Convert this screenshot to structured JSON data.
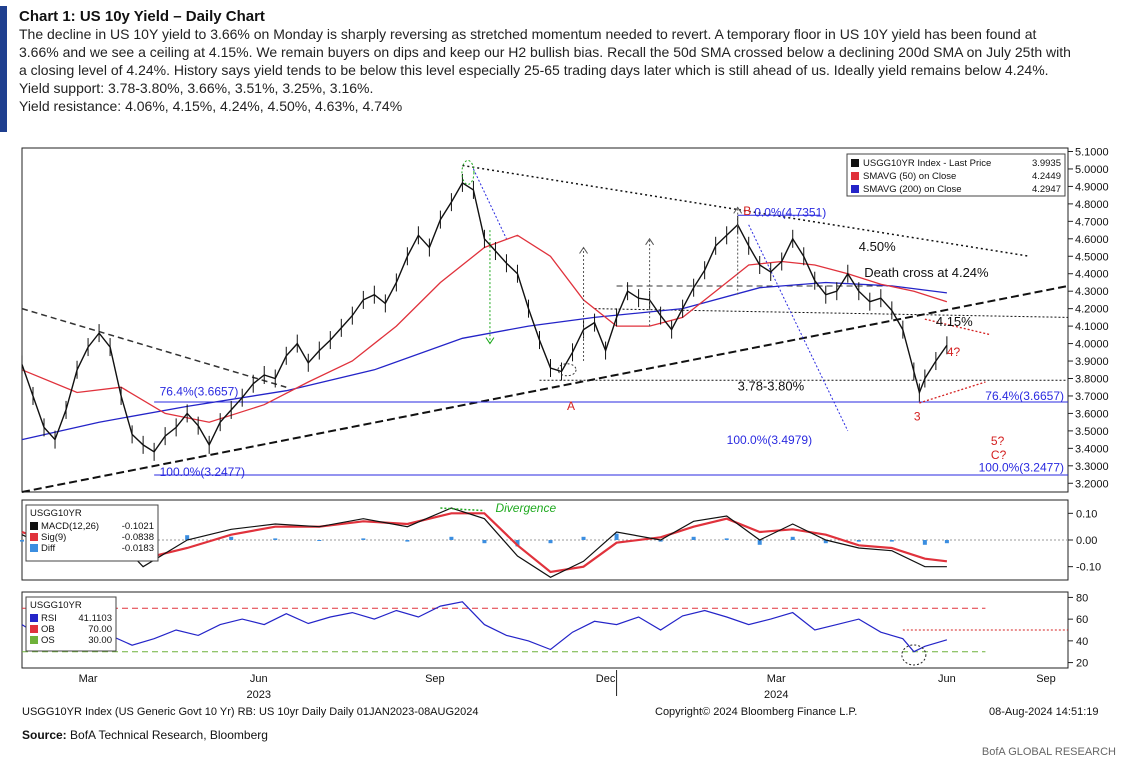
{
  "header": {
    "title": "Chart 1: US 10y Yield – Daily Chart",
    "lines": [
      "The decline in US 10Y yield to 3.66% on Monday is sharply reversing as stretched momentum needed to revert. A temporary floor in US 10Y yield has been found at",
      "3.66% and we see a ceiling at 4.15%. We remain buyers on dips and keep our H2 bullish bias. Recall the 50d SMA crossed below a declining 200d SMA on July 25th with",
      "a closing level of 4.24%. History says yield tends to be below this level especially 25-65 trading days later which is still ahead of us. Ideally yield remains below 4.24%.",
      "Yield support: 3.78-3.80%, 3.66%, 3.51%, 3.25%, 3.16%.",
      "Yield resistance: 4.06%, 4.15%, 4.24%, 4.50%, 4.63%, 4.74%"
    ]
  },
  "colors": {
    "price": "#111111",
    "sma50": "#e0323c",
    "sma200": "#2424c8",
    "fib": "#2a2ae0",
    "annot_red": "#d42020",
    "green": "#1faa1f",
    "accent_bar": "#1f3f8f"
  },
  "chart_data": [
    {
      "type": "line",
      "panel": "price",
      "ylim": [
        3.15,
        5.12
      ],
      "yticks": [
        "5.1000",
        "5.0000",
        "4.9000",
        "4.8000",
        "4.7000",
        "4.6000",
        "4.5000",
        "4.4000",
        "4.3000",
        "4.2000",
        "4.1000",
        "4.0000",
        "3.9000",
        "3.8000",
        "3.7000",
        "3.6000",
        "3.5000",
        "3.4000",
        "3.3000",
        "3.2000"
      ],
      "ytick_values": [
        5.1,
        5.0,
        4.9,
        4.8,
        4.7,
        4.6,
        4.5,
        4.4,
        4.3,
        4.2,
        4.1,
        4.0,
        3.9,
        3.8,
        3.7,
        3.6,
        3.5,
        3.4,
        3.3,
        3.2
      ],
      "xlabels": [
        "Mar",
        "Jun",
        "Sep",
        "Dec",
        "Mar",
        "Jun",
        "Sep"
      ],
      "year_labels": [
        "2023",
        "2024"
      ],
      "legend": [
        {
          "label": "USGG10YR Index - Last Price",
          "value": "3.9935",
          "color": "#111111"
        },
        {
          "label": "SMAVG (50)  on Close",
          "value": "4.2449",
          "color": "#e0323c"
        },
        {
          "label": "SMAVG (200)  on Close",
          "value": "4.2947",
          "color": "#2424c8"
        }
      ],
      "price_points": [
        [
          0,
          3.88
        ],
        [
          2,
          3.7
        ],
        [
          4,
          3.52
        ],
        [
          6,
          3.45
        ],
        [
          8,
          3.62
        ],
        [
          10,
          3.85
        ],
        [
          12,
          3.98
        ],
        [
          14,
          4.06
        ],
        [
          16,
          3.98
        ],
        [
          18,
          3.7
        ],
        [
          20,
          3.48
        ],
        [
          22,
          3.42
        ],
        [
          24,
          3.38
        ],
        [
          26,
          3.47
        ],
        [
          28,
          3.52
        ],
        [
          30,
          3.6
        ],
        [
          32,
          3.53
        ],
        [
          34,
          3.42
        ],
        [
          36,
          3.55
        ],
        [
          38,
          3.62
        ],
        [
          40,
          3.69
        ],
        [
          42,
          3.77
        ],
        [
          44,
          3.82
        ],
        [
          46,
          3.8
        ],
        [
          48,
          3.93
        ],
        [
          50,
          4.0
        ],
        [
          52,
          3.89
        ],
        [
          54,
          3.96
        ],
        [
          56,
          4.02
        ],
        [
          58,
          4.09
        ],
        [
          60,
          4.16
        ],
        [
          62,
          4.25
        ],
        [
          64,
          4.28
        ],
        [
          66,
          4.23
        ],
        [
          68,
          4.35
        ],
        [
          70,
          4.5
        ],
        [
          72,
          4.62
        ],
        [
          74,
          4.55
        ],
        [
          76,
          4.71
        ],
        [
          78,
          4.81
        ],
        [
          80,
          4.92
        ],
        [
          82,
          4.88
        ],
        [
          84,
          4.6
        ],
        [
          86,
          4.53
        ],
        [
          88,
          4.46
        ],
        [
          90,
          4.4
        ],
        [
          92,
          4.2
        ],
        [
          94,
          4.02
        ],
        [
          96,
          3.86
        ],
        [
          98,
          3.84
        ],
        [
          100,
          3.95
        ],
        [
          102,
          4.08
        ],
        [
          104,
          4.12
        ],
        [
          106,
          3.96
        ],
        [
          108,
          4.15
        ],
        [
          110,
          4.3
        ],
        [
          112,
          4.26
        ],
        [
          114,
          4.25
        ],
        [
          116,
          4.16
        ],
        [
          118,
          4.08
        ],
        [
          120,
          4.2
        ],
        [
          122,
          4.32
        ],
        [
          124,
          4.42
        ],
        [
          126,
          4.56
        ],
        [
          128,
          4.62
        ],
        [
          130,
          4.68
        ],
        [
          132,
          4.56
        ],
        [
          134,
          4.45
        ],
        [
          136,
          4.41
        ],
        [
          138,
          4.47
        ],
        [
          140,
          4.6
        ],
        [
          142,
          4.5
        ],
        [
          144,
          4.36
        ],
        [
          146,
          4.28
        ],
        [
          148,
          4.3
        ],
        [
          150,
          4.4
        ],
        [
          152,
          4.3
        ],
        [
          154,
          4.24
        ],
        [
          156,
          4.26
        ],
        [
          158,
          4.19
        ],
        [
          160,
          4.08
        ],
        [
          162,
          3.84
        ],
        [
          163,
          3.72
        ],
        [
          164,
          3.8
        ],
        [
          166,
          3.9
        ],
        [
          168,
          3.99
        ]
      ],
      "sma50_points": [
        [
          0,
          3.85
        ],
        [
          10,
          3.72
        ],
        [
          18,
          3.75
        ],
        [
          26,
          3.6
        ],
        [
          34,
          3.55
        ],
        [
          44,
          3.65
        ],
        [
          52,
          3.78
        ],
        [
          60,
          3.9
        ],
        [
          68,
          4.1
        ],
        [
          76,
          4.35
        ],
        [
          84,
          4.55
        ],
        [
          90,
          4.62
        ],
        [
          96,
          4.5
        ],
        [
          102,
          4.25
        ],
        [
          108,
          4.1
        ],
        [
          114,
          4.1
        ],
        [
          120,
          4.15
        ],
        [
          126,
          4.3
        ],
        [
          132,
          4.45
        ],
        [
          138,
          4.47
        ],
        [
          144,
          4.45
        ],
        [
          150,
          4.4
        ],
        [
          156,
          4.34
        ],
        [
          162,
          4.3
        ],
        [
          168,
          4.24
        ]
      ],
      "sma200_points": [
        [
          0,
          3.45
        ],
        [
          14,
          3.55
        ],
        [
          30,
          3.64
        ],
        [
          48,
          3.73
        ],
        [
          64,
          3.85
        ],
        [
          80,
          4.03
        ],
        [
          92,
          4.1
        ],
        [
          104,
          4.15
        ],
        [
          120,
          4.2
        ],
        [
          134,
          4.32
        ],
        [
          146,
          4.35
        ],
        [
          158,
          4.33
        ],
        [
          168,
          4.29
        ]
      ],
      "annotations": {
        "fib_top": "0.0%(4.7351)",
        "fib_7640": "76.4%(3.6657)",
        "fib_100_a": "100.0%(3.4979)",
        "fib_100_b": "100.0%(3.2477)",
        "fib_100_left": "100.0%(3.2477)",
        "fib_764_left": "76.4%(3.6657)",
        "level_450": "4.50%",
        "death_cross": "Death cross at 4.24%",
        "level_415": "4.15%",
        "level_378": "3.78-3.80%",
        "label_B": "B",
        "label_A": "A",
        "label_3": "3",
        "label_4q": "4?",
        "label_5q": "5?",
        "label_cq": "C?"
      }
    },
    {
      "type": "line",
      "panel": "macd",
      "ylim": [
        -0.15,
        0.15
      ],
      "yticks": [
        "0.10",
        "0.00",
        "-0.10"
      ],
      "ytick_values": [
        0.1,
        0.0,
        -0.1
      ],
      "legend_title": "USGG10YR",
      "legend": [
        {
          "label": "MACD(12,26)",
          "value": "-0.1021",
          "color": "#111111"
        },
        {
          "label": "Sig(9)",
          "value": "-0.0838",
          "color": "#e0323c"
        },
        {
          "label": "Diff",
          "value": "-0.0183",
          "color": "#3b8ee0"
        }
      ],
      "annotation": "Divergence",
      "macd_points": [
        [
          0,
          0.02
        ],
        [
          8,
          -0.06
        ],
        [
          16,
          0.03
        ],
        [
          22,
          -0.1
        ],
        [
          30,
          0.0
        ],
        [
          38,
          0.04
        ],
        [
          46,
          0.06
        ],
        [
          54,
          0.05
        ],
        [
          62,
          0.08
        ],
        [
          70,
          0.05
        ],
        [
          78,
          0.12
        ],
        [
          84,
          0.08
        ],
        [
          90,
          -0.06
        ],
        [
          96,
          -0.14
        ],
        [
          102,
          -0.08
        ],
        [
          108,
          0.03
        ],
        [
          116,
          0.0
        ],
        [
          122,
          0.07
        ],
        [
          128,
          0.09
        ],
        [
          134,
          0.0
        ],
        [
          140,
          0.06
        ],
        [
          146,
          0.0
        ],
        [
          152,
          -0.03
        ],
        [
          158,
          -0.04
        ],
        [
          164,
          -0.1
        ],
        [
          168,
          -0.1
        ]
      ],
      "signal_points": [
        [
          0,
          0.03
        ],
        [
          8,
          -0.03
        ],
        [
          16,
          0.01
        ],
        [
          22,
          -0.07
        ],
        [
          30,
          -0.03
        ],
        [
          38,
          0.02
        ],
        [
          46,
          0.05
        ],
        [
          54,
          0.05
        ],
        [
          62,
          0.07
        ],
        [
          70,
          0.06
        ],
        [
          78,
          0.1
        ],
        [
          84,
          0.1
        ],
        [
          90,
          -0.02
        ],
        [
          96,
          -0.12
        ],
        [
          102,
          -0.1
        ],
        [
          108,
          -0.01
        ],
        [
          116,
          0.01
        ],
        [
          122,
          0.05
        ],
        [
          128,
          0.08
        ],
        [
          134,
          0.03
        ],
        [
          140,
          0.04
        ],
        [
          146,
          0.02
        ],
        [
          152,
          -0.02
        ],
        [
          158,
          -0.03
        ],
        [
          164,
          -0.07
        ],
        [
          168,
          -0.08
        ]
      ]
    },
    {
      "type": "line",
      "panel": "rsi",
      "ylim": [
        15,
        85
      ],
      "yticks": [
        "80",
        "60",
        "40",
        "20"
      ],
      "ytick_values": [
        80,
        60,
        40,
        20
      ],
      "legend_title": "USGG10YR",
      "legend": [
        {
          "label": "RSI",
          "value": "41.1103",
          "color": "#2424c8"
        },
        {
          "label": "OB",
          "value": "70.00",
          "color": "#e0323c"
        },
        {
          "label": "OS",
          "value": "30.00",
          "color": "#6fb23a"
        }
      ],
      "overbought": 70,
      "oversold": 30,
      "rsi_points": [
        [
          0,
          55
        ],
        [
          4,
          42
        ],
        [
          8,
          48
        ],
        [
          12,
          62
        ],
        [
          16,
          45
        ],
        [
          20,
          36
        ],
        [
          24,
          42
        ],
        [
          28,
          50
        ],
        [
          32,
          45
        ],
        [
          36,
          55
        ],
        [
          40,
          60
        ],
        [
          44,
          55
        ],
        [
          48,
          65
        ],
        [
          52,
          56
        ],
        [
          56,
          62
        ],
        [
          60,
          66
        ],
        [
          64,
          60
        ],
        [
          68,
          68
        ],
        [
          72,
          62
        ],
        [
          76,
          72
        ],
        [
          80,
          76
        ],
        [
          84,
          55
        ],
        [
          88,
          45
        ],
        [
          92,
          40
        ],
        [
          96,
          32
        ],
        [
          100,
          48
        ],
        [
          104,
          58
        ],
        [
          108,
          55
        ],
        [
          112,
          62
        ],
        [
          116,
          50
        ],
        [
          120,
          63
        ],
        [
          124,
          68
        ],
        [
          128,
          62
        ],
        [
          132,
          55
        ],
        [
          136,
          60
        ],
        [
          140,
          66
        ],
        [
          144,
          50
        ],
        [
          148,
          55
        ],
        [
          152,
          60
        ],
        [
          156,
          48
        ],
        [
          160,
          42
        ],
        [
          162,
          30
        ],
        [
          164,
          35
        ],
        [
          168,
          41
        ]
      ]
    }
  ],
  "footer": {
    "left": "USGG10YR Index (US Generic Govt 10 Yr) RB: US 10yr Daily  Daily 01JAN2023-08AUG2024",
    "center": "Copyright© 2024 Bloomberg Finance L.P.",
    "right": "08-Aug-2024 14:51:19",
    "source_label": "Source:",
    "source_text": "BofA Technical Research, Bloomberg",
    "brand": "BofA GLOBAL RESEARCH"
  }
}
